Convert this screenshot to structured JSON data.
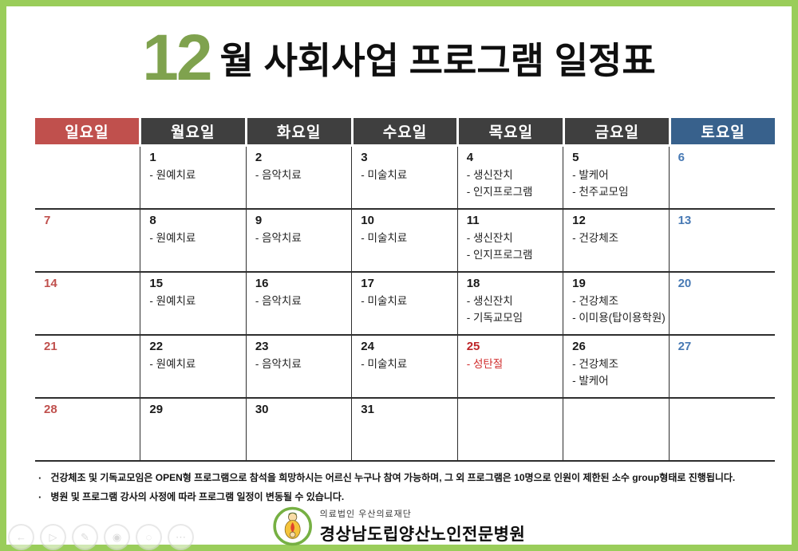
{
  "title": {
    "month": "12",
    "text": "월 사회사업 프로그램 일정표"
  },
  "colors": {
    "frame_green": "#9ACD5A",
    "title_green": "#7FA24E",
    "sunday_red": "#C0504D",
    "weekday_dark": "#3F3F3F",
    "saturday_blue": "#38618C",
    "saturday_date_blue": "#4779B4",
    "holiday_red": "#BE2528"
  },
  "calendar": {
    "day_headers": [
      {
        "label": "일요일"
      },
      {
        "label": "월요일"
      },
      {
        "label": "화요일"
      },
      {
        "label": "수요일"
      },
      {
        "label": "목요일"
      },
      {
        "label": "금요일"
      },
      {
        "label": "토요일"
      }
    ],
    "weeks": [
      {
        "cells": [
          {
            "date": "",
            "programs": []
          },
          {
            "date": "1",
            "programs": [
              "- 원예치료"
            ]
          },
          {
            "date": "2",
            "programs": [
              "- 음악치료"
            ]
          },
          {
            "date": "3",
            "programs": [
              "- 미술치료"
            ]
          },
          {
            "date": "4",
            "programs": [
              "- 생신잔치",
              "- 인지프로그램"
            ]
          },
          {
            "date": "5",
            "programs": [
              "- 발케어",
              "- 천주교모임"
            ]
          },
          {
            "date": "6",
            "programs": []
          }
        ]
      },
      {
        "cells": [
          {
            "date": "7",
            "programs": []
          },
          {
            "date": "8",
            "programs": [
              "- 원예치료"
            ]
          },
          {
            "date": "9",
            "programs": [
              "- 음악치료"
            ]
          },
          {
            "date": "10",
            "programs": [
              "- 미술치료"
            ]
          },
          {
            "date": "11",
            "programs": [
              "- 생신잔치",
              "- 인지프로그램"
            ]
          },
          {
            "date": "12",
            "programs": [
              "- 건강체조"
            ]
          },
          {
            "date": "13",
            "programs": []
          }
        ]
      },
      {
        "cells": [
          {
            "date": "14",
            "programs": []
          },
          {
            "date": "15",
            "programs": [
              "- 원예치료"
            ]
          },
          {
            "date": "16",
            "programs": [
              "- 음악치료"
            ]
          },
          {
            "date": "17",
            "programs": [
              "- 미술치료"
            ]
          },
          {
            "date": "18",
            "programs": [
              "- 생신잔치",
              "- 기독교모임"
            ]
          },
          {
            "date": "19",
            "programs": [
              "- 건강체조",
              "- 이미용(탑이용학원)"
            ]
          },
          {
            "date": "20",
            "programs": []
          }
        ]
      },
      {
        "cells": [
          {
            "date": "21",
            "programs": []
          },
          {
            "date": "22",
            "programs": [
              "- 원예치료"
            ]
          },
          {
            "date": "23",
            "programs": [
              "- 음악치료"
            ]
          },
          {
            "date": "24",
            "programs": [
              "- 미술치료"
            ]
          },
          {
            "date": "25",
            "programs": [
              "- 성탄절"
            ],
            "holiday": true
          },
          {
            "date": "26",
            "programs": [
              "- 건강체조",
              "- 발케어"
            ]
          },
          {
            "date": "27",
            "programs": []
          }
        ]
      },
      {
        "cells": [
          {
            "date": "28",
            "programs": []
          },
          {
            "date": "29",
            "programs": []
          },
          {
            "date": "30",
            "programs": []
          },
          {
            "date": "31",
            "programs": []
          },
          {
            "date": "",
            "programs": []
          },
          {
            "date": "",
            "programs": []
          },
          {
            "date": "",
            "programs": []
          }
        ]
      }
    ]
  },
  "notes": {
    "bullet": "·",
    "items": [
      "건강체조 및 기독교모임은 OPEN형 프로그램으로 참석을 희망하시는 어르신 누구나 참여 가능하며, 그 외 프로그램은 10명으로 인원이 제한된 소수 group형태로 진행됩니다.",
      "병원 및 프로그램 강사의 사정에 따라 프로그램 일정이 변동될 수 있습니다."
    ]
  },
  "logo": {
    "org_sub": "의료법인 우산의료재단",
    "org_name": "경상남도립양산노인전문병원"
  },
  "watermark": {
    "icons": [
      {
        "name": "back-icon",
        "glyph": "←"
      },
      {
        "name": "play-icon",
        "glyph": "▷"
      },
      {
        "name": "pencil-icon",
        "glyph": "✎"
      },
      {
        "name": "camera-icon",
        "glyph": "◉"
      },
      {
        "name": "search-icon",
        "glyph": "◌"
      },
      {
        "name": "more-icon",
        "glyph": "⋯"
      }
    ]
  }
}
